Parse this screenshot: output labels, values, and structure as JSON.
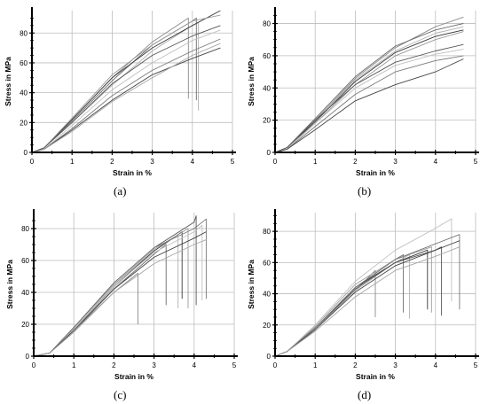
{
  "chart_data": [
    {
      "type": "line",
      "panel_label": "(a)",
      "xlabel": "Strain in %",
      "ylabel": "Stress in MPa",
      "xlim": [
        0,
        5
      ],
      "ylim": [
        0,
        95
      ],
      "xticks": [
        0,
        1,
        2,
        3,
        4,
        5
      ],
      "yticks": [
        0,
        20,
        40,
        60,
        80
      ],
      "grid": true,
      "series": [
        {
          "x": [
            0,
            0.3,
            1,
            2,
            3,
            3.9,
            3.9
          ],
          "y": [
            0,
            3,
            22,
            50,
            74,
            90,
            36
          ]
        },
        {
          "x": [
            0,
            0.3,
            1,
            2,
            3,
            4,
            4.1,
            4.1
          ],
          "y": [
            0,
            3,
            21,
            48,
            72,
            88,
            90,
            35
          ]
        },
        {
          "x": [
            0,
            0.3,
            1,
            2,
            3,
            4,
            4.15,
            4.15
          ],
          "y": [
            0,
            3,
            20,
            45,
            68,
            85,
            87,
            28
          ]
        },
        {
          "x": [
            0,
            0.3,
            1,
            2,
            3,
            4,
            4.7
          ],
          "y": [
            0,
            3,
            22,
            50,
            70,
            85,
            95
          ]
        },
        {
          "x": [
            0,
            0.3,
            1,
            2,
            3,
            4,
            4.7
          ],
          "y": [
            0,
            3,
            23,
            52,
            72,
            88,
            92
          ]
        },
        {
          "x": [
            0,
            0.3,
            1,
            2,
            3,
            4,
            4.7
          ],
          "y": [
            0,
            3,
            20,
            46,
            65,
            78,
            85
          ]
        },
        {
          "x": [
            0,
            0.3,
            1,
            2,
            3,
            4,
            4.7
          ],
          "y": [
            0,
            2,
            18,
            42,
            60,
            75,
            82
          ]
        },
        {
          "x": [
            0,
            0.3,
            1,
            2,
            3,
            4,
            4.7
          ],
          "y": [
            0,
            2,
            16,
            38,
            55,
            68,
            76
          ]
        },
        {
          "x": [
            0,
            0.3,
            1,
            2,
            3,
            4,
            4.7
          ],
          "y": [
            0,
            2,
            15,
            35,
            52,
            63,
            70
          ]
        },
        {
          "x": [
            0,
            0.3,
            1,
            2,
            3,
            4,
            4.7
          ],
          "y": [
            0,
            2,
            14,
            34,
            50,
            65,
            73
          ]
        }
      ]
    },
    {
      "type": "line",
      "panel_label": "(b)",
      "xlabel": "Strain in %",
      "ylabel": "Stress in MPa",
      "xlim": [
        0,
        5
      ],
      "ylim": [
        0,
        88
      ],
      "xticks": [
        0,
        1,
        2,
        3,
        4,
        5
      ],
      "yticks": [
        0,
        20,
        40,
        60,
        80
      ],
      "grid": true,
      "series": [
        {
          "x": [
            0,
            0.3,
            1,
            2,
            3,
            4,
            4.7
          ],
          "y": [
            0,
            3,
            20,
            46,
            65,
            78,
            84
          ]
        },
        {
          "x": [
            0,
            0.3,
            1,
            2,
            3,
            4,
            4.7
          ],
          "y": [
            0,
            3,
            21,
            47,
            66,
            76,
            80
          ]
        },
        {
          "x": [
            0,
            0.3,
            1,
            2,
            3,
            4,
            4.7
          ],
          "y": [
            0,
            3,
            20,
            45,
            63,
            74,
            78
          ]
        },
        {
          "x": [
            0,
            0.3,
            1,
            2,
            3,
            4,
            4.7
          ],
          "y": [
            0,
            3,
            19,
            44,
            62,
            72,
            76
          ]
        },
        {
          "x": [
            0,
            0.3,
            1,
            2,
            3,
            4,
            4.7
          ],
          "y": [
            0,
            3,
            18,
            42,
            60,
            70,
            75
          ]
        },
        {
          "x": [
            0,
            0.3,
            1,
            2,
            3,
            4,
            4.7
          ],
          "y": [
            0,
            3,
            20,
            42,
            56,
            63,
            67
          ]
        },
        {
          "x": [
            0,
            0.3,
            1,
            2,
            3,
            4,
            4.7
          ],
          "y": [
            0,
            2,
            18,
            40,
            54,
            61,
            64
          ]
        },
        {
          "x": [
            0,
            0.3,
            1,
            2,
            3,
            4,
            4.7
          ],
          "y": [
            0,
            2,
            16,
            36,
            50,
            57,
            60
          ]
        },
        {
          "x": [
            0,
            0.3,
            1,
            2,
            3,
            4,
            4.7
          ],
          "y": [
            0,
            2,
            14,
            32,
            42,
            50,
            58
          ]
        }
      ]
    },
    {
      "type": "line",
      "panel_label": "(c)",
      "xlabel": "Strain in %",
      "ylabel": "Stress in MPa",
      "xlim": [
        0,
        5
      ],
      "ylim": [
        0,
        90
      ],
      "xticks": [
        0,
        1,
        2,
        3,
        4,
        5
      ],
      "yticks": [
        0,
        20,
        40,
        60,
        80
      ],
      "grid": true,
      "series": [
        {
          "x": [
            0,
            0.4,
            1,
            2,
            2.6,
            2.6
          ],
          "y": [
            0,
            2,
            16,
            40,
            52,
            20
          ]
        },
        {
          "x": [
            0,
            0.4,
            1,
            2,
            3,
            3.3,
            3.3
          ],
          "y": [
            0,
            2,
            17,
            42,
            64,
            70,
            32
          ]
        },
        {
          "x": [
            0,
            0.4,
            1,
            2,
            3,
            3.6,
            3.6
          ],
          "y": [
            0,
            2,
            17,
            43,
            66,
            76,
            30
          ]
        },
        {
          "x": [
            0,
            0.4,
            1,
            2,
            3,
            3.7,
            3.7
          ],
          "y": [
            0,
            2,
            17,
            44,
            66,
            78,
            36
          ]
        },
        {
          "x": [
            0,
            0.4,
            1,
            2,
            3,
            3.85,
            3.85
          ],
          "y": [
            0,
            2,
            18,
            45,
            67,
            80,
            30
          ]
        },
        {
          "x": [
            0,
            0.4,
            1,
            2,
            3,
            4,
            4.05,
            4.05
          ],
          "y": [
            0,
            2,
            18,
            46,
            68,
            84,
            88,
            32
          ]
        },
        {
          "x": [
            0,
            0.4,
            1,
            2,
            3,
            4,
            4.2,
            4.2
          ],
          "y": [
            0,
            2,
            17,
            44,
            65,
            78,
            82,
            35
          ]
        },
        {
          "x": [
            0,
            0.4,
            1,
            2,
            3,
            4,
            4.3,
            4.3
          ],
          "y": [
            0,
            2,
            18,
            46,
            68,
            80,
            86,
            36
          ]
        },
        {
          "x": [
            0,
            0.4,
            1,
            2,
            3,
            4,
            4.3
          ],
          "y": [
            0,
            2,
            16,
            42,
            62,
            74,
            78
          ]
        },
        {
          "x": [
            0,
            0.4,
            1,
            2,
            3,
            4,
            4.3
          ],
          "y": [
            0,
            2,
            15,
            40,
            58,
            70,
            73
          ]
        }
      ]
    },
    {
      "type": "line",
      "panel_label": "(d)",
      "xlabel": "Strain in %",
      "ylabel": "Stress in MPa",
      "xlim": [
        0,
        5
      ],
      "ylim": [
        0,
        92
      ],
      "xticks": [
        0,
        1,
        2,
        3,
        4,
        5
      ],
      "yticks": [
        0,
        20,
        40,
        60,
        80
      ],
      "grid": true,
      "series": [
        {
          "x": [
            0,
            0.3,
            1,
            2,
            2.5,
            2.5
          ],
          "y": [
            0,
            3,
            18,
            42,
            55,
            25
          ]
        },
        {
          "x": [
            0,
            0.3,
            1,
            2,
            3,
            3.2,
            3.2
          ],
          "y": [
            0,
            3,
            18,
            44,
            62,
            65,
            28
          ]
        },
        {
          "x": [
            0,
            0.3,
            1,
            2,
            3,
            3.35,
            3.35
          ],
          "y": [
            0,
            3,
            17,
            42,
            60,
            65,
            24
          ]
        },
        {
          "x": [
            0,
            0.3,
            1,
            2,
            3,
            3.8,
            3.8
          ],
          "y": [
            0,
            3,
            18,
            44,
            60,
            68,
            30
          ]
        },
        {
          "x": [
            0,
            0.3,
            1,
            2,
            3,
            3.9,
            3.9
          ],
          "y": [
            0,
            3,
            19,
            46,
            62,
            70,
            28
          ]
        },
        {
          "x": [
            0,
            0.3,
            1,
            2,
            3,
            4,
            4.15,
            4.15
          ],
          "y": [
            0,
            3,
            18,
            43,
            60,
            68,
            70,
            26
          ]
        },
        {
          "x": [
            0,
            0.3,
            1,
            2,
            3,
            4,
            4.4,
            4.4
          ],
          "y": [
            0,
            3,
            20,
            48,
            68,
            82,
            88,
            35
          ]
        },
        {
          "x": [
            0,
            0.3,
            1,
            2,
            3,
            4,
            4.6,
            4.6
          ],
          "y": [
            0,
            3,
            18,
            44,
            62,
            72,
            78,
            30
          ]
        },
        {
          "x": [
            0,
            0.3,
            1,
            2,
            3,
            4,
            4.6
          ],
          "y": [
            0,
            3,
            17,
            41,
            58,
            68,
            74
          ]
        },
        {
          "x": [
            0,
            0.3,
            1,
            2,
            3,
            4,
            4.6
          ],
          "y": [
            0,
            3,
            16,
            38,
            55,
            64,
            70
          ]
        }
      ]
    }
  ]
}
